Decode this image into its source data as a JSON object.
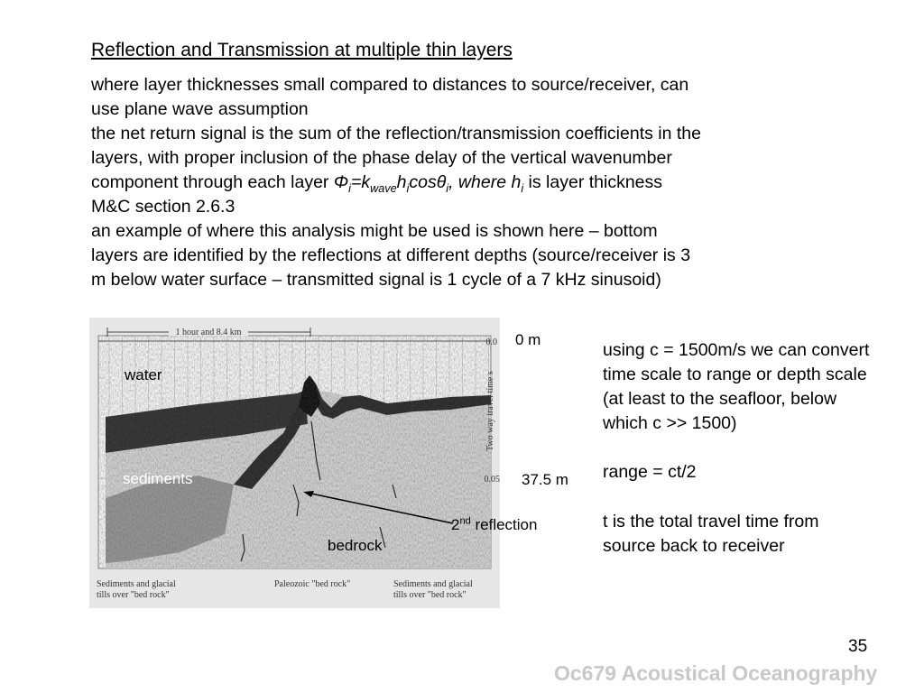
{
  "slide": {
    "title": "Reflection and Transmission at multiple thin layers",
    "line1": "where layer thicknesses small compared to distances to source/receiver, can",
    "line2": "use plane wave assumption",
    "line3": "the net return signal is the sum of the reflection/transmission coefficients in the",
    "line4": "layers, with proper inclusion of the phase delay of the vertical wavenumber",
    "line5_prefix": "component through each layer ",
    "formula": {
      "phi": "Φ",
      "sub_i1": "i",
      "eq": "=k",
      "sub_wave": "wave",
      "h": "h",
      "sub_i2": "i",
      "cos": "cosθ",
      "sub_i3": "i",
      "where": ", where h",
      "sub_i4": "i"
    },
    "line5_suffix": " is layer thickness",
    "line6": "M&C section 2.6.3",
    "line7": "an example of where this analysis might be used is shown here – bottom",
    "line8": "layers are identified by the reflections at different depths (source/receiver is 3",
    "line9": "m below water surface – transmitted signal is 1 cycle of a 7 kHz sinusoid)",
    "right": {
      "r1": "using c = 1500m/s we can convert",
      "r2": "time scale to range or depth scale",
      "r3": "(at least to the seafloor, below",
      "r4": "which c >> 1500)",
      "r5": "range = ct/2",
      "r6": "t is the total travel time from",
      "r7": "source back to receiver"
    },
    "page_number": "35",
    "footer": "Oc679 Acoustical Oceanography"
  },
  "figure": {
    "scale_label": "1 hour and 8.4 km",
    "axis_label": "Two way travel time s",
    "tick_top": "0.0",
    "tick_mid": "0.05",
    "caption_left_1": "Sediments and glacial",
    "caption_left_2": "tills over \"bed rock\"",
    "caption_mid": "Paleozoic \"bed rock\"",
    "caption_right_1": "Sediments and glacial",
    "caption_right_2": "tills over \"bed rock\"",
    "label_water": "water",
    "label_sediments": "sediments",
    "label_bedrock": "bedrock",
    "label_0m": "0 m",
    "label_37m": "37.5 m",
    "label_2nd_pre": "2",
    "label_2nd_sup": "nd",
    "label_2nd_post": " reflection"
  }
}
